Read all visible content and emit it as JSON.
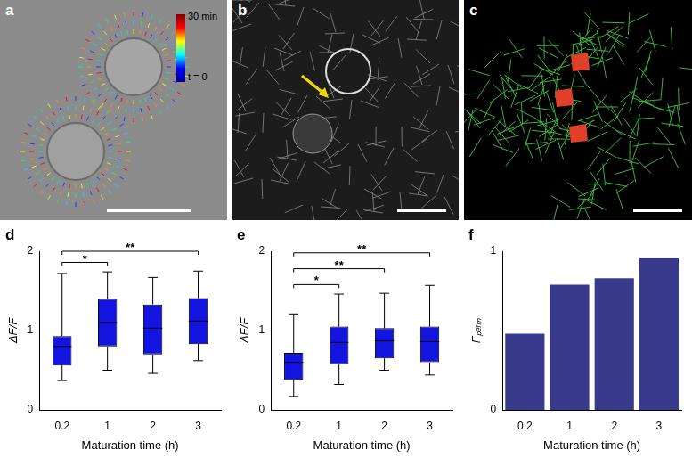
{
  "panels": [
    {
      "label": "a",
      "colorbar": {
        "top_label": "30 min",
        "bottom_label": "t = 0"
      }
    },
    {
      "label": "b"
    },
    {
      "label": "c"
    }
  ],
  "chart_data": [
    {
      "panel": "d",
      "type": "box",
      "categories": [
        "0.2",
        "1",
        "2",
        "3"
      ],
      "whisker_low": [
        0.37,
        0.5,
        0.46,
        0.62
      ],
      "q1": [
        0.56,
        0.8,
        0.7,
        0.83
      ],
      "median": [
        0.8,
        1.1,
        1.03,
        1.12
      ],
      "q3": [
        0.93,
        1.4,
        1.33,
        1.41
      ],
      "whisker_high": [
        1.72,
        1.74,
        1.67,
        1.75
      ],
      "color": "#1414e0",
      "x_label": "Maturation time (h)",
      "y_label": "ΔF/F",
      "ylim": [
        0,
        2
      ],
      "yticks": [
        0,
        1,
        2
      ],
      "grid": false,
      "significance": [
        {
          "from": "0.2",
          "to": "1",
          "y": 1.86,
          "label": "*"
        },
        {
          "from": "0.2",
          "to": "3",
          "y": 2.0,
          "label": "**"
        }
      ]
    },
    {
      "panel": "e",
      "type": "box",
      "categories": [
        "0.2",
        "1",
        "2",
        "3"
      ],
      "whisker_low": [
        0.17,
        0.32,
        0.5,
        0.44
      ],
      "q1": [
        0.38,
        0.58,
        0.65,
        0.6
      ],
      "median": [
        0.6,
        0.85,
        0.87,
        0.86
      ],
      "q3": [
        0.72,
        1.05,
        1.03,
        1.05
      ],
      "whisker_high": [
        1.21,
        1.46,
        1.47,
        1.57
      ],
      "color": "#1414e0",
      "x_label": "Maturation time (h)",
      "y_label": "ΔF/F",
      "ylim": [
        0,
        2
      ],
      "yticks": [
        0,
        1,
        2
      ],
      "grid": false,
      "significance": [
        {
          "from": "0.2",
          "to": "1",
          "y": 1.58,
          "label": "*"
        },
        {
          "from": "0.2",
          "to": "2",
          "y": 1.78,
          "label": "**"
        },
        {
          "from": "0.2",
          "to": "3",
          "y": 1.98,
          "label": "**"
        }
      ]
    },
    {
      "panel": "f",
      "type": "bar",
      "categories": [
        "0.2",
        "1",
        "2",
        "3"
      ],
      "values": [
        0.48,
        0.79,
        0.83,
        0.96
      ],
      "color": "#3a3a8c",
      "x_label": "Maturation time (h)",
      "y_label": "Fₚₑᵣₘ",
      "ylim": [
        0,
        1
      ],
      "yticks": [
        0,
        1
      ],
      "grid": false
    }
  ]
}
